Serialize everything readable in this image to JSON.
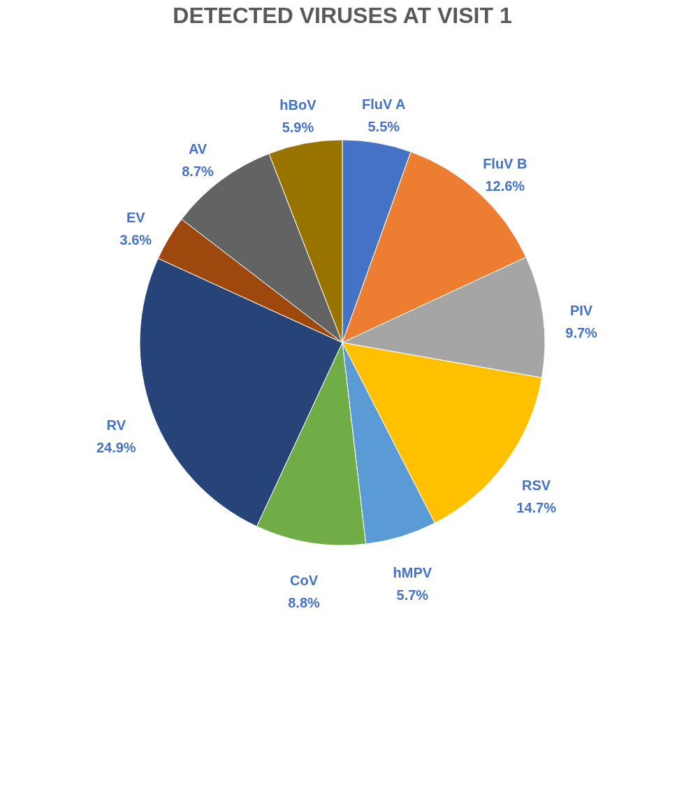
{
  "chart_data": {
    "type": "pie",
    "title": "DETECTED VIRUSES AT VISIT 1",
    "categories": [
      "FluV A",
      "FluV B",
      "PIV",
      "RSV",
      "hMPV",
      "CoV",
      "RV",
      "EV",
      "AV",
      "hBoV"
    ],
    "values": [
      5.5,
      12.6,
      9.7,
      14.7,
      5.7,
      8.8,
      24.9,
      3.6,
      8.7,
      5.9
    ],
    "value_labels": [
      "5.5%",
      "12.6%",
      "9.7%",
      "14.7%",
      "5.7%",
      "8.8%",
      "24.9%",
      "3.6%",
      "8.7%",
      "5.9%"
    ],
    "colors": [
      "#4472c4",
      "#ed7d31",
      "#a5a5a5",
      "#ffc000",
      "#5b9bd5",
      "#70ad47",
      "#264478",
      "#9e480e",
      "#636363",
      "#997300"
    ]
  }
}
